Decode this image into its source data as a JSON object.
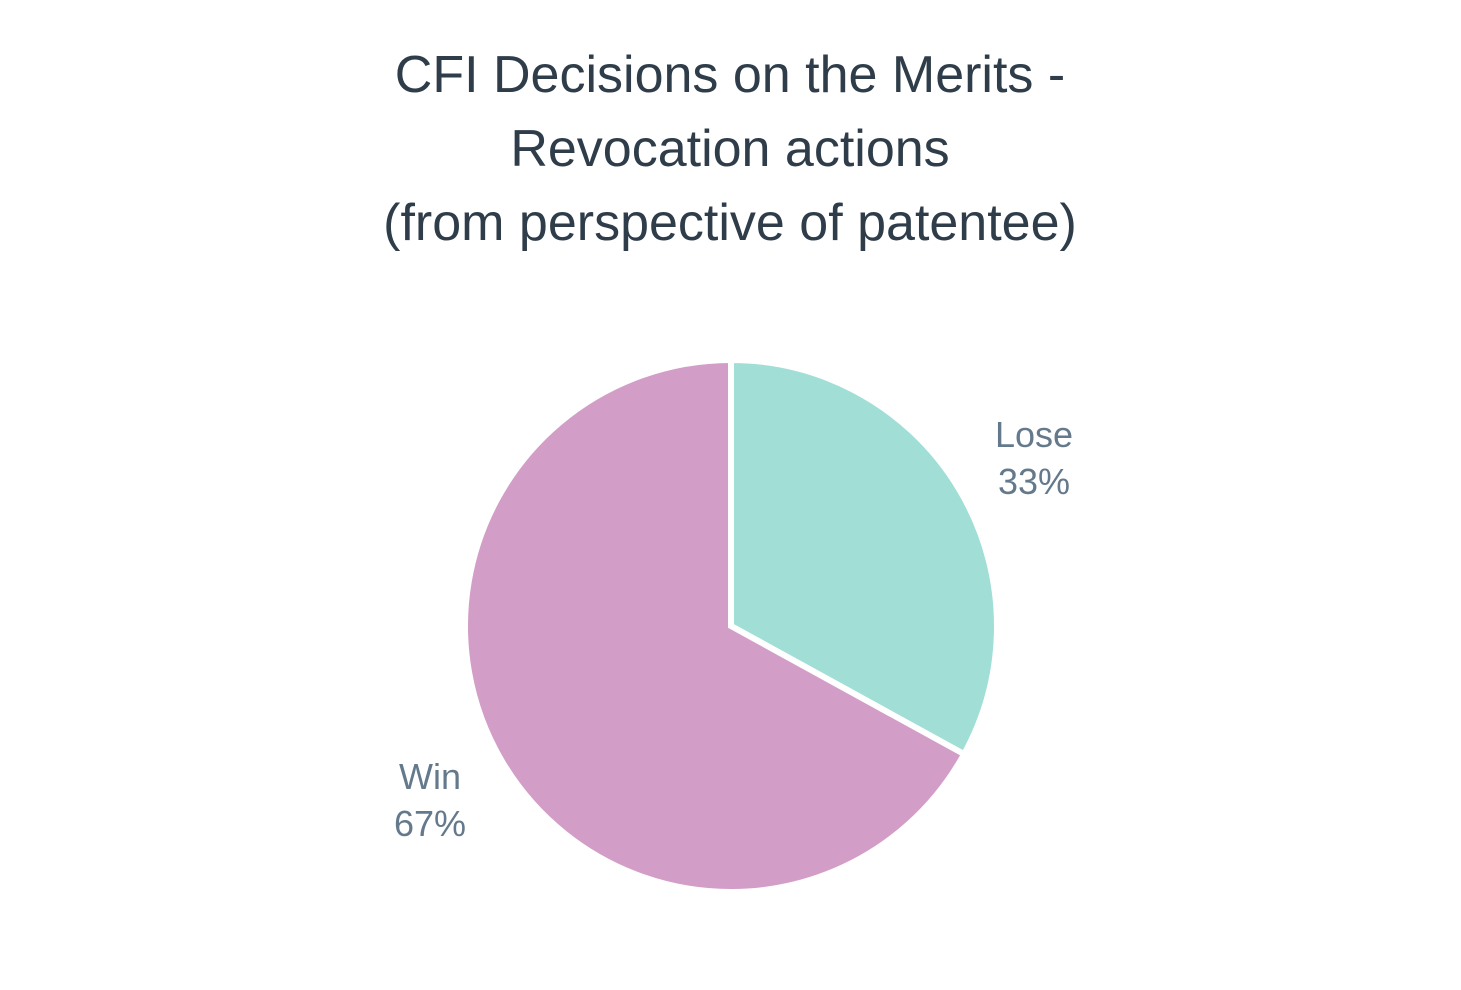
{
  "chart_data": {
    "type": "pie",
    "title": [
      "CFI Decisions on the Merits -",
      "Revocation actions",
      "(from perspective of patentee)"
    ],
    "slices": [
      {
        "label": "Lose",
        "value": 33,
        "display": "33%",
        "color": "#a1dfd6"
      },
      {
        "label": "Win",
        "value": 67,
        "display": "67%",
        "color": "#d29dc7"
      }
    ],
    "start_angle_deg": 0,
    "direction": "clockwise",
    "legend": "none"
  }
}
